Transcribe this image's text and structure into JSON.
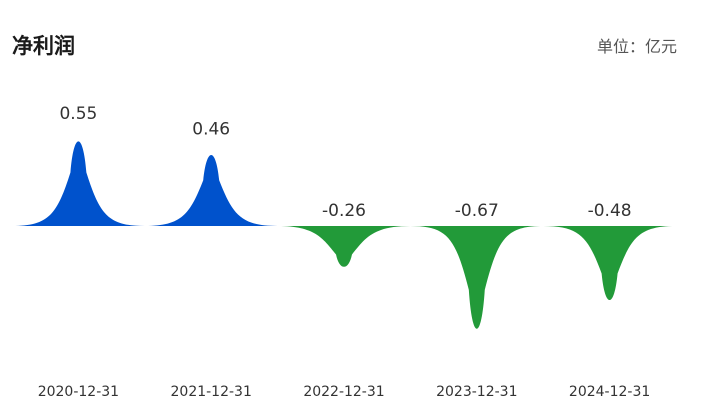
{
  "header": {
    "title": "净利润",
    "unit": "单位：亿元"
  },
  "chart_data": {
    "type": "area",
    "title": "净利润",
    "unit": "单位：亿元",
    "categories": [
      "2020-12-31",
      "2021-12-31",
      "2022-12-31",
      "2023-12-31",
      "2024-12-31"
    ],
    "values": [
      0.55,
      0.46,
      -0.26,
      -0.67,
      -0.48
    ],
    "value_labels": [
      "0.55",
      "0.46",
      "-0.26",
      "-0.67",
      "-0.48"
    ],
    "colors": {
      "positive": "#0052cc",
      "negative": "#229a39"
    },
    "grid": false,
    "legend": "none"
  }
}
